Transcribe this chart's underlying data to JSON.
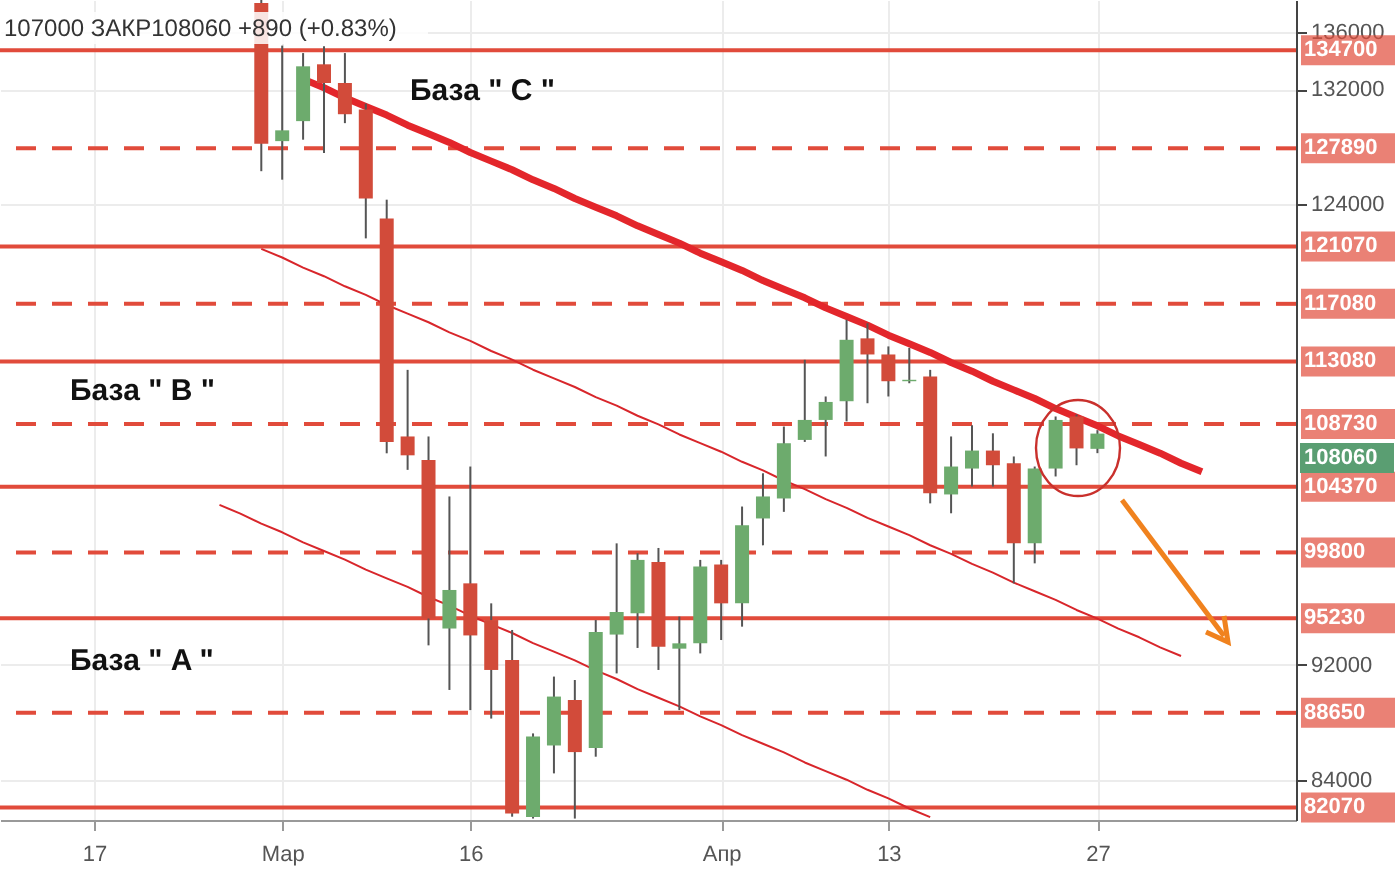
{
  "chart_data": {
    "type": "candlestick",
    "categories": [
      null,
      null,
      null,
      null,
      "17",
      null,
      null,
      null,
      null,
      null,
      null,
      null,
      null,
      "Мар",
      null,
      null,
      null,
      null,
      null,
      null,
      null,
      null,
      "16",
      null,
      null,
      null,
      null,
      null,
      null,
      null,
      null,
      null,
      null,
      null,
      "Апр",
      null,
      null,
      null,
      null,
      null,
      null,
      null,
      "13",
      null,
      null,
      null,
      null,
      null,
      null,
      null,
      null,
      null,
      "27",
      null,
      null,
      null,
      null,
      null,
      null,
      null,
      null,
      null
    ],
    "ohlc": [
      null,
      null,
      null,
      null,
      null,
      null,
      null,
      null,
      null,
      null,
      null,
      null,
      [
        138000,
        138200,
        126300,
        128200
      ],
      [
        128390,
        135030,
        125710,
        129140
      ],
      [
        129780,
        134510,
        128490,
        133590
      ],
      [
        133730,
        134990,
        127560,
        132430
      ],
      [
        132430,
        134510,
        129640,
        130260
      ],
      [
        130580,
        131000,
        121630,
        124410
      ],
      [
        123020,
        124320,
        106690,
        107480
      ],
      [
        107860,
        112490,
        105540,
        106550
      ],
      [
        106230,
        107860,
        93340,
        95200
      ],
      [
        94510,
        103690,
        90240,
        97190
      ],
      [
        97650,
        105770,
        88840,
        94030
      ],
      [
        95100,
        96260,
        88250,
        91630
      ],
      [
        92320,
        94410,
        81430,
        81650
      ],
      [
        81400,
        87220,
        81300,
        87000
      ],
      [
        86380,
        91170,
        84440,
        89780
      ],
      [
        89540,
        90930,
        81300,
        85920
      ],
      [
        86200,
        95100,
        85600,
        94270
      ],
      [
        94090,
        100430,
        91390,
        95660
      ],
      [
        95570,
        99740,
        93160,
        99280
      ],
      [
        99140,
        100110,
        91630,
        93250
      ],
      [
        93110,
        95340,
        88840,
        93480
      ],
      [
        93480,
        99280,
        92780,
        98820
      ],
      [
        98960,
        99280,
        93710,
        96260
      ],
      [
        96260,
        102990,
        94640,
        101690
      ],
      [
        102160,
        105300,
        100290,
        103690
      ],
      [
        103550,
        108550,
        102620,
        107390
      ],
      [
        107620,
        113190,
        107480,
        109010
      ],
      [
        109010,
        110640,
        106470,
        110260
      ],
      [
        110310,
        115970,
        108910,
        114580
      ],
      [
        114680,
        115730,
        110170,
        113560
      ],
      [
        113560,
        114120,
        110640,
        111700
      ],
      [
        111700,
        114020,
        111560,
        111800
      ],
      [
        112030,
        112490,
        103210,
        103910
      ],
      [
        103830,
        107860,
        102520,
        105770
      ],
      [
        105630,
        108640,
        104380,
        106880
      ],
      [
        106880,
        108080,
        104380,
        105860
      ],
      [
        106000,
        106470,
        97650,
        100430
      ],
      [
        100430,
        105770,
        99040,
        105630
      ],
      [
        105630,
        109250,
        105080,
        109010
      ],
      [
        109250,
        109390,
        105860,
        107030
      ],
      [
        107000,
        108300,
        106700,
        108060
      ],
      null,
      null,
      null,
      null,
      null,
      null,
      null,
      null,
      null
    ],
    "colors": [
      null,
      null,
      null,
      null,
      null,
      null,
      null,
      null,
      null,
      null,
      null,
      null,
      "#d24b3a",
      "#6dab6d",
      "#6dab6d",
      "#d24b3a",
      "#d24b3a",
      "#d24b3a",
      "#d24b3a",
      "#d24b3a",
      "#d24b3a",
      "#6dab6d",
      "#d24b3a",
      "#d24b3a",
      "#d24b3a",
      "#6dab6d",
      "#6dab6d",
      "#d24b3a",
      "#6dab6d",
      "#6dab6d",
      "#6dab6d",
      "#d24b3a",
      "#6dab6d",
      "#6dab6d",
      "#d24b3a",
      "#6dab6d",
      "#6dab6d",
      "#6dab6d",
      "#6dab6d",
      "#6dab6d",
      "#6dab6d",
      "#d24b3a",
      "#d24b3a",
      "#6dab6d",
      "#d24b3a",
      "#6dab6d",
      "#6dab6d",
      "#d24b3a",
      "#d24b3a",
      "#6dab6d",
      "#6dab6d",
      "#d24b3a",
      "#6dab6d",
      null,
      null,
      null,
      null,
      null,
      null,
      null,
      null,
      null
    ],
    "series": [
      {
        "type": "line",
        "color": "#e3262b",
        "values": [
          null,
          null,
          null,
          null,
          null,
          null,
          null,
          null,
          null,
          null,
          null,
          null,
          null,
          null,
          132700,
          132100,
          131400,
          130800,
          130200,
          129500,
          128900,
          128300,
          127600,
          127000,
          126400,
          125700,
          125100,
          124400,
          123800,
          123200,
          122500,
          121900,
          121300,
          120600,
          120000,
          119400,
          118700,
          118100,
          117500,
          116800,
          116200,
          115600,
          114900,
          114300,
          113700,
          113000,
          112400,
          111700,
          111100,
          110500,
          109800,
          109200,
          108600,
          107900,
          107300,
          106700,
          106000,
          105400,
          null,
          null,
          null,
          null
        ]
      },
      {
        "type": "line",
        "color": "#d8262b",
        "values": [
          null,
          null,
          null,
          null,
          null,
          null,
          null,
          null,
          null,
          null,
          null,
          null,
          120900,
          120300,
          119600,
          119000,
          118300,
          117700,
          117000,
          116400,
          115800,
          115100,
          114500,
          113800,
          113200,
          112500,
          111900,
          111300,
          110600,
          110000,
          109300,
          108700,
          108000,
          107400,
          106800,
          106100,
          105500,
          104800,
          104200,
          103500,
          102900,
          102200,
          101600,
          101000,
          100300,
          99700,
          99000,
          98400,
          97700,
          97100,
          96500,
          95800,
          95200,
          94500,
          93900,
          93200,
          92600,
          null,
          null,
          null,
          null,
          null
        ]
      },
      {
        "type": "line",
        "color": "#d8262b",
        "values": [
          null,
          null,
          null,
          null,
          null,
          null,
          null,
          null,
          null,
          null,
          103100,
          102500,
          101800,
          101200,
          100500,
          99900,
          99300,
          98600,
          98000,
          97400,
          96700,
          96100,
          95400,
          94800,
          94200,
          93500,
          92900,
          92300,
          91600,
          91000,
          90300,
          89700,
          89100,
          88400,
          87800,
          87100,
          86500,
          85900,
          85200,
          84600,
          84000,
          83300,
          82700,
          82000,
          81400,
          null,
          null,
          null,
          null,
          null,
          null,
          null,
          null,
          null,
          null,
          null,
          null,
          null,
          null,
          null,
          null,
          null
        ]
      }
    ],
    "ylim": [
      81200,
      138200
    ],
    "yticks": [
      84000,
      92000,
      124000,
      132000,
      136000
    ],
    "grid": true,
    "ref_lines": [
      {
        "axis": "y",
        "value": 134700,
        "label": "134700",
        "color": "#e14b3b",
        "line_style": "solid"
      },
      {
        "axis": "y",
        "value": 127890,
        "label": "127890",
        "color": "#e14b3b",
        "line_style": "dashed"
      },
      {
        "axis": "y",
        "value": 121070,
        "label": "121070",
        "color": "#e14b3b",
        "line_style": "solid"
      },
      {
        "axis": "y",
        "value": 117080,
        "label": "117080",
        "color": "#e14b3b",
        "line_style": "dashed"
      },
      {
        "axis": "y",
        "value": 113080,
        "label": "113080",
        "color": "#e14b3b",
        "line_style": "solid"
      },
      {
        "axis": "y",
        "value": 108730,
        "label": "108730",
        "color": "#e14b3b",
        "line_style": "dashed"
      },
      {
        "axis": "y",
        "value": 104370,
        "label": "104370",
        "color": "#e14b3b",
        "line_style": "solid"
      },
      {
        "axis": "y",
        "value": 99800,
        "label": "99800",
        "color": "#e14b3b",
        "line_style": "dashed"
      },
      {
        "axis": "y",
        "value": 95230,
        "label": "95230",
        "color": "#e14b3b",
        "line_style": "solid"
      },
      {
        "axis": "y",
        "value": 88650,
        "label": "88650",
        "color": "#e14b3b",
        "line_style": "dashed"
      },
      {
        "axis": "y",
        "value": 82070,
        "label": "82070",
        "color": "#e14b3b",
        "line_style": "solid"
      }
    ],
    "annotations": [
      "107000 ЗАКР108060 +890 (+0.83%)",
      "108060",
      "База  \" C \"",
      "База  \" B \"",
      "База  \" A \""
    ]
  }
}
